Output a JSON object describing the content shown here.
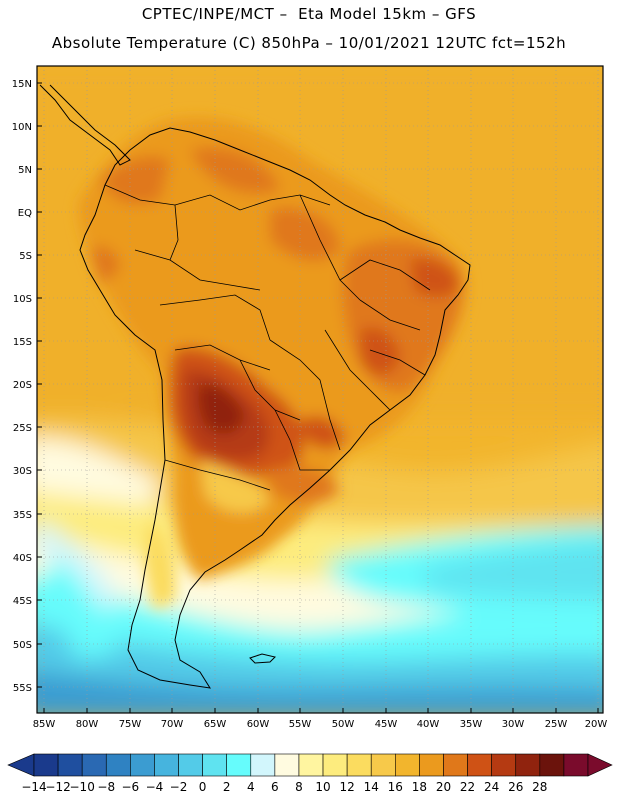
{
  "title_line1": "CPTEC/INPE/MCT –  Eta Model 15km – GFS",
  "title_line2": "Absolute Temperature (C) 850hPa – 10/01/2021 12UTC fct=152h",
  "lat_labels": [
    "15N",
    "10N",
    "5N",
    "EQ",
    "5S",
    "10S",
    "15S",
    "20S",
    "25S",
    "30S",
    "35S",
    "40S",
    "45S",
    "50S",
    "55S"
  ],
  "lon_labels": [
    "85W",
    "80W",
    "75W",
    "70W",
    "65W",
    "60W",
    "55W",
    "50W",
    "45W",
    "40W",
    "35W",
    "30W",
    "25W",
    "20W"
  ],
  "colorbar": {
    "labels": [
      "-14",
      "-12",
      "-10",
      "-8",
      "-6",
      "-4",
      "-2",
      "0",
      "2",
      "4",
      "6",
      "8",
      "10",
      "12",
      "14",
      "16",
      "18",
      "20",
      "22",
      "24",
      "26",
      "28"
    ],
    "colors": [
      "#1a3a8c",
      "#1f4f9f",
      "#2a69b3",
      "#2f82c2",
      "#3b9cd1",
      "#46b4de",
      "#53cbe8",
      "#5fe3f0",
      "#66fcfc",
      "#d2f6fc",
      "#fffbe0",
      "#fff5a0",
      "#fdec7e",
      "#fbdc5f",
      "#f7c94a",
      "#f2b52d",
      "#eb9a1e",
      "#e0781a",
      "#cf5215",
      "#b53a12",
      "#90230e",
      "#6b130c",
      "#7a0b2c"
    ]
  }
}
